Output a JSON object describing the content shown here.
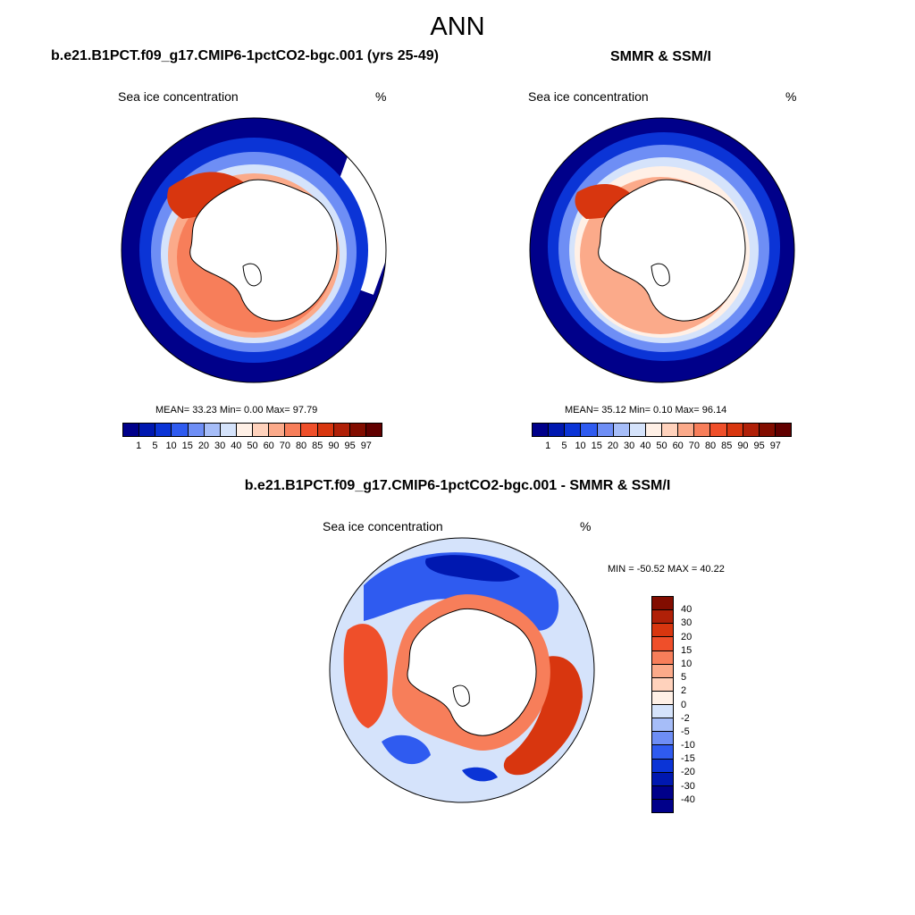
{
  "title": "ANN",
  "panel_left": {
    "title": "b.e21.B1PCT.f09_g17.CMIP6-1pctCO2-bgc.001 (yrs 25-49)",
    "variable": "Sea ice concentration",
    "units": "%",
    "stats": "MEAN=  33.23  Min=   0.00  Max=  97.79"
  },
  "panel_right": {
    "title": "SMMR & SSM/I",
    "variable": "Sea ice concentration",
    "units": "%",
    "stats": "MEAN=  35.12  Min=   0.10  Max=  96.14"
  },
  "panel_diff": {
    "title": "b.e21.B1PCT.f09_g17.CMIP6-1pctCO2-bgc.001 - SMMR & SSM/I",
    "variable": "Sea ice concentration",
    "units": "%",
    "stats": "MIN = -50.52 MAX =  40.22"
  },
  "chart_data": [
    {
      "type": "heatmap",
      "projection": "south polar stereographic",
      "title": "b.e21.B1PCT.f09_g17.CMIP6-1pctCO2-bgc.001 (yrs 25-49)",
      "variable": "Sea ice concentration",
      "units": "%",
      "mean": 33.23,
      "min": 0.0,
      "max": 97.79,
      "colorbar": {
        "levels": [
          "1",
          "5",
          "10",
          "15",
          "20",
          "30",
          "40",
          "50",
          "60",
          "70",
          "80",
          "85",
          "90",
          "95",
          "97"
        ],
        "colors": [
          "#00008a",
          "#0018b0",
          "#0b34d6",
          "#2f5bf0",
          "#6e8ef5",
          "#a6bdf8",
          "#d5e3fb",
          "#fff0e6",
          "#ffd2bc",
          "#fbaa8a",
          "#f77e5a",
          "#ef4f2a",
          "#d8360f",
          "#b02008",
          "#820d00",
          "#610000"
        ]
      }
    },
    {
      "type": "heatmap",
      "projection": "south polar stereographic",
      "title": "SMMR & SSM/I",
      "variable": "Sea ice concentration",
      "units": "%",
      "mean": 35.12,
      "min": 0.1,
      "max": 96.14,
      "colorbar": {
        "levels": [
          "1",
          "5",
          "10",
          "15",
          "20",
          "30",
          "40",
          "50",
          "60",
          "70",
          "80",
          "85",
          "90",
          "95",
          "97"
        ],
        "colors": [
          "#00008a",
          "#0018b0",
          "#0b34d6",
          "#2f5bf0",
          "#6e8ef5",
          "#a6bdf8",
          "#d5e3fb",
          "#fff0e6",
          "#ffd2bc",
          "#fbaa8a",
          "#f77e5a",
          "#ef4f2a",
          "#d8360f",
          "#b02008",
          "#820d00",
          "#610000"
        ]
      }
    },
    {
      "type": "heatmap",
      "projection": "south polar stereographic",
      "title": "b.e21.B1PCT.f09_g17.CMIP6-1pctCO2-bgc.001 - SMMR & SSM/I",
      "variable": "Sea ice concentration",
      "units": "%",
      "min": -50.52,
      "max": 40.22,
      "colorbar": {
        "levels": [
          "40",
          "30",
          "20",
          "15",
          "10",
          "5",
          "2",
          "0",
          "-2",
          "-5",
          "-10",
          "-15",
          "-20",
          "-30",
          "-40"
        ],
        "colors": [
          "#820d00",
          "#b02008",
          "#d8360f",
          "#ef4f2a",
          "#f77e5a",
          "#fbaa8a",
          "#ffd2bc",
          "#fff0e6",
          "#d5e3fb",
          "#a6bdf8",
          "#6e8ef5",
          "#2f5bf0",
          "#0b34d6",
          "#0018b0",
          "#00008a",
          "#00008a"
        ]
      }
    }
  ]
}
